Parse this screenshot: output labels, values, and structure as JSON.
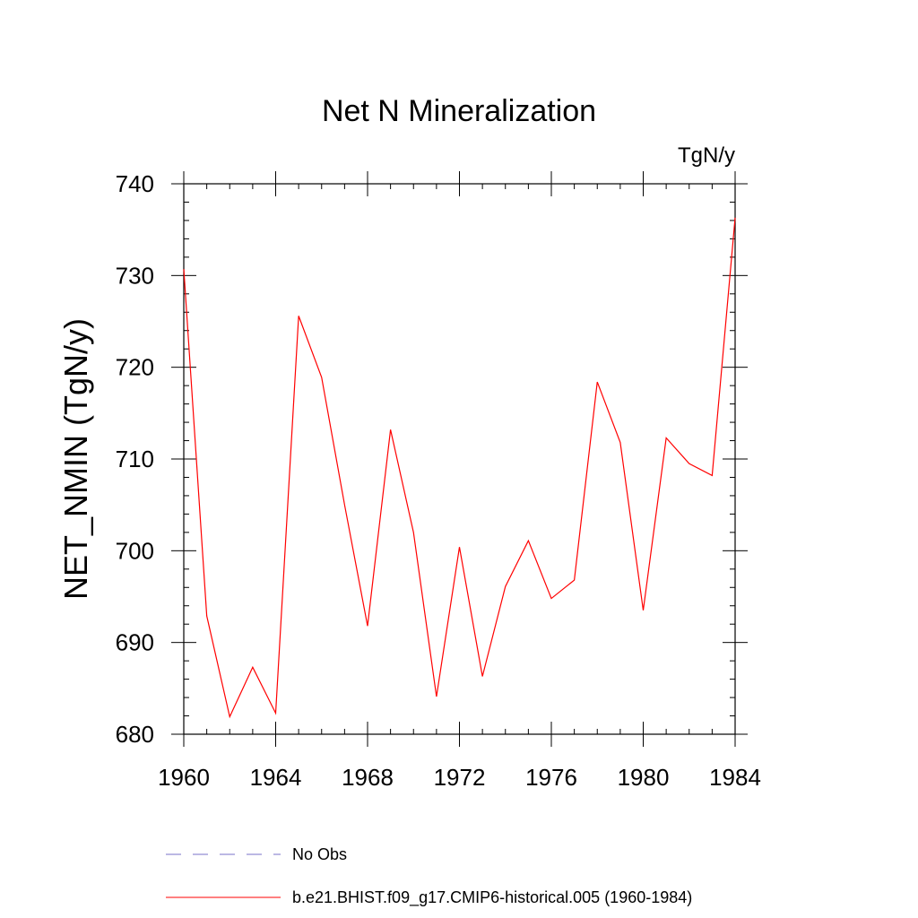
{
  "chart_data": {
    "type": "line",
    "title": "Net N Mineralization",
    "units": "TgN/y",
    "xlabel": "",
    "ylabel": "NET_NMIN  (TgN/y)",
    "xlim": [
      1960,
      1984
    ],
    "ylim": [
      680,
      740
    ],
    "xticks": [
      1960,
      1964,
      1968,
      1972,
      1976,
      1980,
      1984
    ],
    "yticks": [
      680,
      690,
      700,
      710,
      720,
      730,
      740
    ],
    "grid": false,
    "legend_position": "bottom",
    "series": [
      {
        "name": "No Obs",
        "color": "#7a72c8",
        "style": "dashed",
        "x": [],
        "values": []
      },
      {
        "name": "b.e21.BHIST.f09_g17.CMIP6-historical.005 (1960-1984)",
        "color": "#ff0000",
        "style": "solid",
        "x": [
          1960,
          1961,
          1962,
          1963,
          1964,
          1965,
          1966,
          1967,
          1968,
          1969,
          1970,
          1971,
          1972,
          1973,
          1974,
          1975,
          1976,
          1977,
          1978,
          1979,
          1980,
          1981,
          1982,
          1983,
          1984
        ],
        "values": [
          730.7,
          692.9,
          681.9,
          687.3,
          682.3,
          725.6,
          718.9,
          705.0,
          691.8,
          713.2,
          702.0,
          684.1,
          700.4,
          686.3,
          696.1,
          701.1,
          694.8,
          696.8,
          718.4,
          711.8,
          693.5,
          712.3,
          709.5,
          708.2,
          736.3
        ]
      }
    ]
  }
}
